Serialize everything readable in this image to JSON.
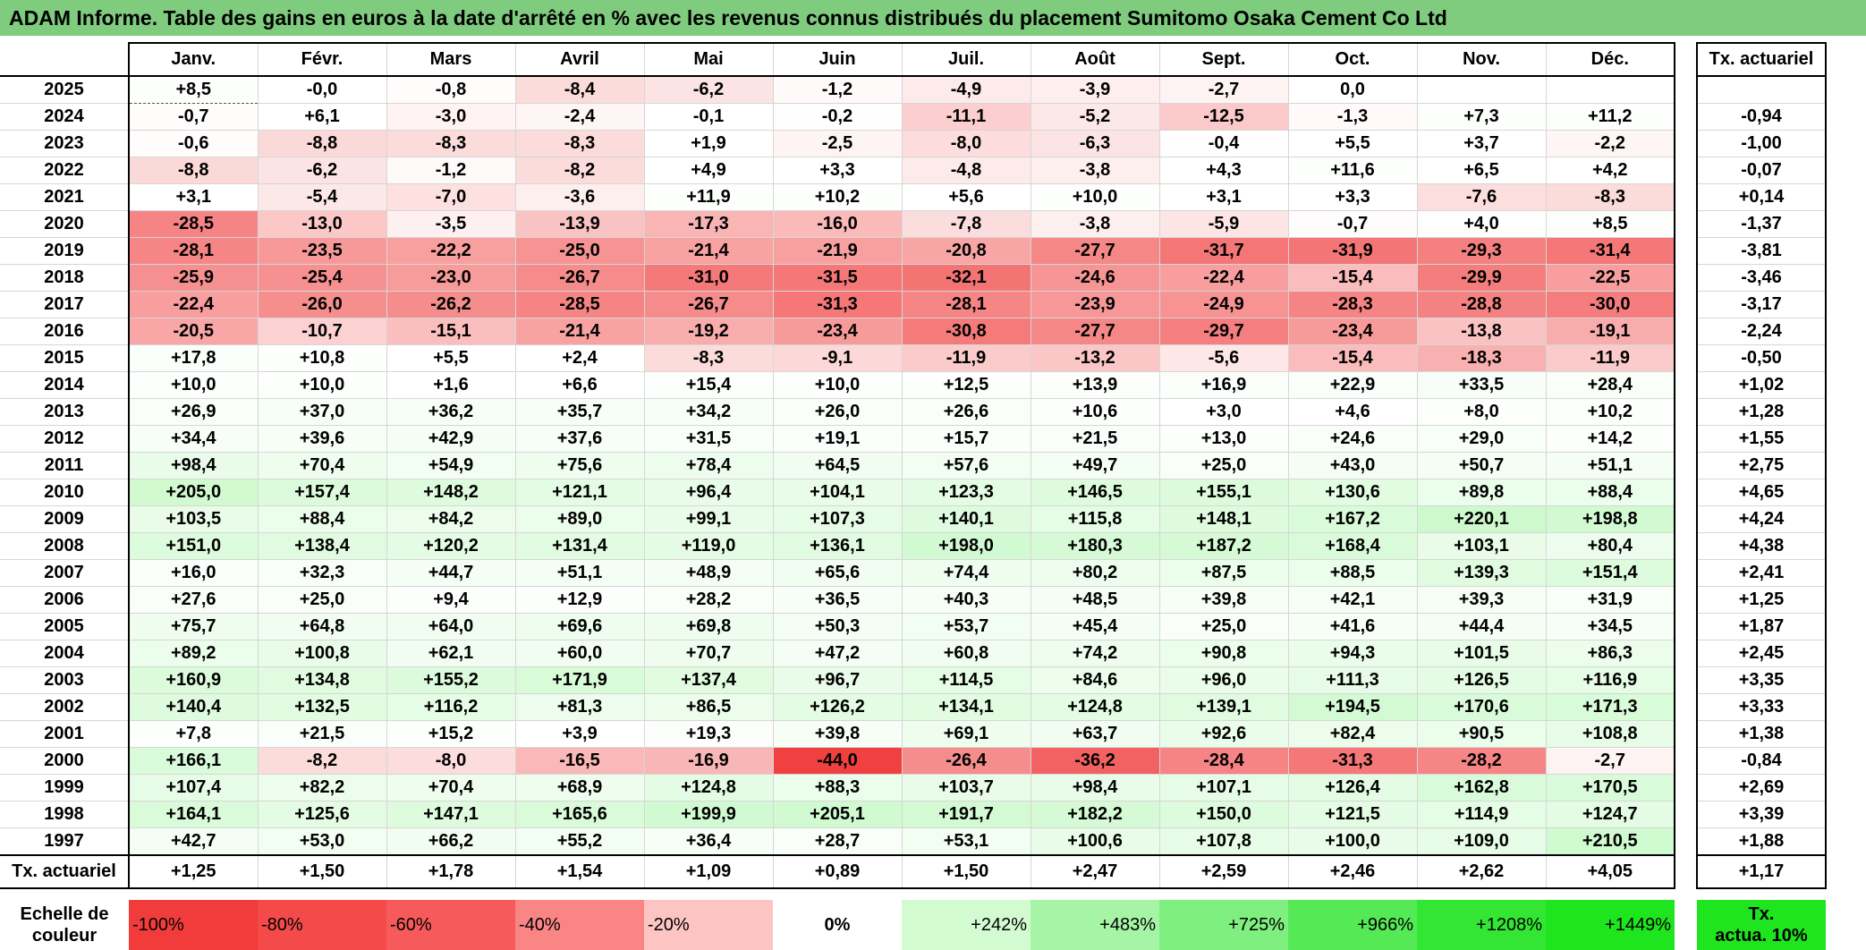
{
  "title": "ADAM Informe. Table des gains en euros à la date d'arrêté en % avec les revenus connus distribués du placement Sumitomo Osaka Cement Co Ltd",
  "months": [
    "Janv.",
    "Févr.",
    "Mars",
    "Avril",
    "Mai",
    "Juin",
    "Juil.",
    "Août",
    "Sept.",
    "Oct.",
    "Nov.",
    "Déc."
  ],
  "rate_header": "Tx. actuariel",
  "rows": [
    {
      "year": "2025",
      "values": [
        "+8,5",
        "-0,0",
        "-0,8",
        "-8,4",
        "-6,2",
        "-1,2",
        "-4,9",
        "-3,9",
        "-2,7",
        "0,0",
        "",
        ""
      ],
      "rate": ""
    },
    {
      "year": "2024",
      "values": [
        "-0,7",
        "+6,1",
        "-3,0",
        "-2,4",
        "-0,1",
        "-0,2",
        "-11,1",
        "-5,2",
        "-12,5",
        "-1,3",
        "+7,3",
        "+11,2"
      ],
      "rate": "-0,94"
    },
    {
      "year": "2023",
      "values": [
        "-0,6",
        "-8,8",
        "-8,3",
        "-8,3",
        "+1,9",
        "-2,5",
        "-8,0",
        "-6,3",
        "-0,4",
        "+5,5",
        "+3,7",
        "-2,2"
      ],
      "rate": "-1,00"
    },
    {
      "year": "2022",
      "values": [
        "-8,8",
        "-6,2",
        "-1,2",
        "-8,2",
        "+4,9",
        "+3,3",
        "-4,8",
        "-3,8",
        "+4,3",
        "+11,6",
        "+6,5",
        "+4,2"
      ],
      "rate": "-0,07"
    },
    {
      "year": "2021",
      "values": [
        "+3,1",
        "-5,4",
        "-7,0",
        "-3,6",
        "+11,9",
        "+10,2",
        "+5,6",
        "+10,0",
        "+3,1",
        "+3,3",
        "-7,6",
        "-8,3"
      ],
      "rate": "+0,14"
    },
    {
      "year": "2020",
      "values": [
        "-28,5",
        "-13,0",
        "-3,5",
        "-13,9",
        "-17,3",
        "-16,0",
        "-7,8",
        "-3,8",
        "-5,9",
        "-0,7",
        "+4,0",
        "+8,5"
      ],
      "rate": "-1,37"
    },
    {
      "year": "2019",
      "values": [
        "-28,1",
        "-23,5",
        "-22,2",
        "-25,0",
        "-21,4",
        "-21,9",
        "-20,8",
        "-27,7",
        "-31,7",
        "-31,9",
        "-29,3",
        "-31,4"
      ],
      "rate": "-3,81"
    },
    {
      "year": "2018",
      "values": [
        "-25,9",
        "-25,4",
        "-23,0",
        "-26,7",
        "-31,0",
        "-31,5",
        "-32,1",
        "-24,6",
        "-22,4",
        "-15,4",
        "-29,9",
        "-22,5"
      ],
      "rate": "-3,46"
    },
    {
      "year": "2017",
      "values": [
        "-22,4",
        "-26,0",
        "-26,2",
        "-28,5",
        "-26,7",
        "-31,3",
        "-28,1",
        "-23,9",
        "-24,9",
        "-28,3",
        "-28,8",
        "-30,0"
      ],
      "rate": "-3,17"
    },
    {
      "year": "2016",
      "values": [
        "-20,5",
        "-10,7",
        "-15,1",
        "-21,4",
        "-19,2",
        "-23,4",
        "-30,8",
        "-27,7",
        "-29,7",
        "-23,4",
        "-13,8",
        "-19,1"
      ],
      "rate": "-2,24"
    },
    {
      "year": "2015",
      "values": [
        "+17,8",
        "+10,8",
        "+5,5",
        "+2,4",
        "-8,3",
        "-9,1",
        "-11,9",
        "-13,2",
        "-5,6",
        "-15,4",
        "-18,3",
        "-11,9"
      ],
      "rate": "-0,50"
    },
    {
      "year": "2014",
      "values": [
        "+10,0",
        "+10,0",
        "+1,6",
        "+6,6",
        "+15,4",
        "+10,0",
        "+12,5",
        "+13,9",
        "+16,9",
        "+22,9",
        "+33,5",
        "+28,4"
      ],
      "rate": "+1,02"
    },
    {
      "year": "2013",
      "values": [
        "+26,9",
        "+37,0",
        "+36,2",
        "+35,7",
        "+34,2",
        "+26,0",
        "+26,6",
        "+10,6",
        "+3,0",
        "+4,6",
        "+8,0",
        "+10,2"
      ],
      "rate": "+1,28"
    },
    {
      "year": "2012",
      "values": [
        "+34,4",
        "+39,6",
        "+42,9",
        "+37,6",
        "+31,5",
        "+19,1",
        "+15,7",
        "+21,5",
        "+13,0",
        "+24,6",
        "+29,0",
        "+14,2"
      ],
      "rate": "+1,55"
    },
    {
      "year": "2011",
      "values": [
        "+98,4",
        "+70,4",
        "+54,9",
        "+75,6",
        "+78,4",
        "+64,5",
        "+57,6",
        "+49,7",
        "+25,0",
        "+43,0",
        "+50,7",
        "+51,1"
      ],
      "rate": "+2,75"
    },
    {
      "year": "2010",
      "values": [
        "+205,0",
        "+157,4",
        "+148,2",
        "+121,1",
        "+96,4",
        "+104,1",
        "+123,3",
        "+146,5",
        "+155,1",
        "+130,6",
        "+89,8",
        "+88,4"
      ],
      "rate": "+4,65"
    },
    {
      "year": "2009",
      "values": [
        "+103,5",
        "+88,4",
        "+84,2",
        "+89,0",
        "+99,1",
        "+107,3",
        "+140,1",
        "+115,8",
        "+148,1",
        "+167,2",
        "+220,1",
        "+198,8"
      ],
      "rate": "+4,24"
    },
    {
      "year": "2008",
      "values": [
        "+151,0",
        "+138,4",
        "+120,2",
        "+131,4",
        "+119,0",
        "+136,1",
        "+198,0",
        "+180,3",
        "+187,2",
        "+168,4",
        "+103,1",
        "+80,4"
      ],
      "rate": "+4,38"
    },
    {
      "year": "2007",
      "values": [
        "+16,0",
        "+32,3",
        "+44,7",
        "+51,1",
        "+48,9",
        "+65,6",
        "+74,4",
        "+80,2",
        "+87,5",
        "+88,5",
        "+139,3",
        "+151,4"
      ],
      "rate": "+2,41"
    },
    {
      "year": "2006",
      "values": [
        "+27,6",
        "+25,0",
        "+9,4",
        "+12,9",
        "+28,2",
        "+36,5",
        "+40,3",
        "+48,5",
        "+39,8",
        "+42,1",
        "+39,3",
        "+31,9"
      ],
      "rate": "+1,25"
    },
    {
      "year": "2005",
      "values": [
        "+75,7",
        "+64,8",
        "+64,0",
        "+69,6",
        "+69,8",
        "+50,3",
        "+53,7",
        "+45,4",
        "+25,0",
        "+41,6",
        "+44,4",
        "+34,5"
      ],
      "rate": "+1,87"
    },
    {
      "year": "2004",
      "values": [
        "+89,2",
        "+100,8",
        "+62,1",
        "+60,0",
        "+70,7",
        "+47,2",
        "+60,8",
        "+74,2",
        "+90,8",
        "+94,3",
        "+101,5",
        "+86,3"
      ],
      "rate": "+2,45"
    },
    {
      "year": "2003",
      "values": [
        "+160,9",
        "+134,8",
        "+155,2",
        "+171,9",
        "+137,4",
        "+96,7",
        "+114,5",
        "+84,6",
        "+96,0",
        "+111,3",
        "+126,5",
        "+116,9"
      ],
      "rate": "+3,35"
    },
    {
      "year": "2002",
      "values": [
        "+140,4",
        "+132,5",
        "+116,2",
        "+81,3",
        "+86,5",
        "+126,2",
        "+134,1",
        "+124,8",
        "+139,1",
        "+194,5",
        "+170,6",
        "+171,3"
      ],
      "rate": "+3,33"
    },
    {
      "year": "2001",
      "values": [
        "+7,8",
        "+21,5",
        "+15,2",
        "+3,9",
        "+19,3",
        "+39,8",
        "+69,1",
        "+63,7",
        "+92,6",
        "+82,4",
        "+90,5",
        "+108,8"
      ],
      "rate": "+1,38"
    },
    {
      "year": "2000",
      "values": [
        "+166,1",
        "-8,2",
        "-8,0",
        "-16,5",
        "-16,9",
        "-44,0",
        "-26,4",
        "-36,2",
        "-28,4",
        "-31,3",
        "-28,2",
        "-2,7"
      ],
      "rate": "-0,84"
    },
    {
      "year": "1999",
      "values": [
        "+107,4",
        "+82,2",
        "+70,4",
        "+68,9",
        "+124,8",
        "+88,3",
        "+103,7",
        "+98,4",
        "+107,1",
        "+126,4",
        "+162,8",
        "+170,5"
      ],
      "rate": "+2,69"
    },
    {
      "year": "1998",
      "values": [
        "+164,1",
        "+125,6",
        "+147,1",
        "+165,6",
        "+199,9",
        "+205,1",
        "+191,7",
        "+182,2",
        "+150,0",
        "+121,5",
        "+114,9",
        "+124,7"
      ],
      "rate": "+3,39"
    },
    {
      "year": "1997",
      "values": [
        "+42,7",
        "+53,0",
        "+66,2",
        "+55,2",
        "+36,4",
        "+28,7",
        "+53,1",
        "+100,6",
        "+107,8",
        "+100,0",
        "+109,0",
        "+210,5"
      ],
      "rate": "+1,88"
    }
  ],
  "footer": {
    "label": "Tx. actuariel",
    "values": [
      "+1,25",
      "+1,50",
      "+1,78",
      "+1,54",
      "+1,09",
      "+0,89",
      "+1,50",
      "+2,47",
      "+2,59",
      "+2,46",
      "+2,62",
      "+4,05"
    ],
    "rate": "+1,17"
  },
  "scale": {
    "label_line1": "Echelle de",
    "label_line2": "couleur",
    "steps": [
      {
        "label": "-100%",
        "color": "#f23c3c"
      },
      {
        "label": "-80%",
        "color": "#f44a4a"
      },
      {
        "label": "-60%",
        "color": "#f75a5a"
      },
      {
        "label": "-40%",
        "color": "#fa8585"
      },
      {
        "label": "-20%",
        "color": "#fdc4c4"
      },
      {
        "label": "0%",
        "color": "#ffffff"
      },
      {
        "label": "+242%",
        "color": "#d2fbd2"
      },
      {
        "label": "+483%",
        "color": "#a6f5a6"
      },
      {
        "label": "+725%",
        "color": "#7ff07f"
      },
      {
        "label": "+966%",
        "color": "#55ea55"
      },
      {
        "label": "+1208%",
        "color": "#33e633"
      },
      {
        "label": "+1449%",
        "color": "#1ee51e"
      }
    ],
    "rate_line1": "Tx.",
    "rate_line2": "actua. 10%",
    "rate_color": "#1ee51e"
  }
}
